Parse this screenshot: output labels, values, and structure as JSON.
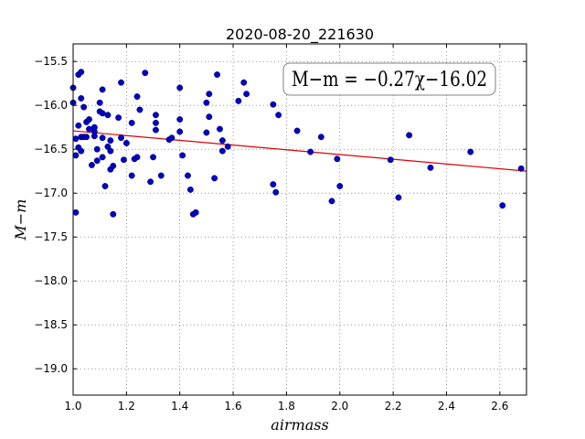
{
  "chart_data": {
    "type": "scatter",
    "title": "2020-08-20_221630",
    "xlabel": "airmass",
    "ylabel": "M−m",
    "xlim": [
      1.0,
      2.7
    ],
    "ylim": [
      -19.3,
      -15.3
    ],
    "y_inverted": true,
    "grid": true,
    "x_ticks": [
      1.0,
      1.2,
      1.4,
      1.6,
      1.8,
      2.0,
      2.2,
      2.4,
      2.6
    ],
    "x_tick_labels": [
      "1.0",
      "1.2",
      "1.4",
      "1.6",
      "1.8",
      "2.0",
      "2.2",
      "2.4",
      "2.6"
    ],
    "y_ticks": [
      -15.5,
      -16.0,
      -16.5,
      -17.0,
      -17.5,
      -18.0,
      -18.5,
      -19.0
    ],
    "y_tick_labels": [
      "−15.5",
      "−16.0",
      "−16.5",
      "−17.0",
      "−17.5",
      "−18.0",
      "−18.5",
      "−19.0"
    ],
    "annotation": "M−m = −0.27χ−16.02",
    "fit": {
      "slope": -0.27,
      "intercept": -16.02,
      "color": "#dd0000"
    },
    "point_color": "#0000cc",
    "points": [
      [
        1.0,
        -15.8
      ],
      [
        1.0,
        -15.97
      ],
      [
        1.01,
        -16.38
      ],
      [
        1.01,
        -16.57
      ],
      [
        1.01,
        -17.22
      ],
      [
        1.02,
        -15.65
      ],
      [
        1.02,
        -16.23
      ],
      [
        1.02,
        -16.48
      ],
      [
        1.03,
        -15.62
      ],
      [
        1.03,
        -15.92
      ],
      [
        1.03,
        -16.36
      ],
      [
        1.03,
        -16.52
      ],
      [
        1.04,
        -16.36
      ],
      [
        1.04,
        -16.02
      ],
      [
        1.05,
        -16.19
      ],
      [
        1.05,
        -16.36
      ],
      [
        1.06,
        -16.16
      ],
      [
        1.06,
        -16.27
      ],
      [
        1.07,
        -16.68
      ],
      [
        1.08,
        -16.3
      ],
      [
        1.08,
        -16.25
      ],
      [
        1.08,
        -16.35
      ],
      [
        1.09,
        -16.63
      ],
      [
        1.09,
        -16.5
      ],
      [
        1.1,
        -15.97
      ],
      [
        1.1,
        -16.07
      ],
      [
        1.11,
        -16.09
      ],
      [
        1.11,
        -16.37
      ],
      [
        1.11,
        -16.59
      ],
      [
        1.11,
        -15.82
      ],
      [
        1.12,
        -16.92
      ],
      [
        1.13,
        -16.47
      ],
      [
        1.13,
        -16.11
      ],
      [
        1.14,
        -16.4
      ],
      [
        1.14,
        -16.52
      ],
      [
        1.14,
        -16.73
      ],
      [
        1.15,
        -16.69
      ],
      [
        1.15,
        -17.24
      ],
      [
        1.17,
        -16.14
      ],
      [
        1.18,
        -16.37
      ],
      [
        1.18,
        -15.74
      ],
      [
        1.19,
        -16.62
      ],
      [
        1.2,
        -16.43
      ],
      [
        1.22,
        -16.2
      ],
      [
        1.22,
        -16.8
      ],
      [
        1.23,
        -16.61
      ],
      [
        1.24,
        -15.9
      ],
      [
        1.24,
        -16.59
      ],
      [
        1.25,
        -16.05
      ],
      [
        1.27,
        -15.63
      ],
      [
        1.29,
        -16.87
      ],
      [
        1.3,
        -16.59
      ],
      [
        1.31,
        -16.11
      ],
      [
        1.31,
        -16.2
      ],
      [
        1.31,
        -16.28
      ],
      [
        1.33,
        -16.8
      ],
      [
        1.36,
        -16.39
      ],
      [
        1.37,
        -16.37
      ],
      [
        1.4,
        -15.8
      ],
      [
        1.4,
        -16.16
      ],
      [
        1.4,
        -16.3
      ],
      [
        1.41,
        -16.57
      ],
      [
        1.43,
        -16.8
      ],
      [
        1.44,
        -16.96
      ],
      [
        1.45,
        -17.24
      ],
      [
        1.46,
        -17.22
      ],
      [
        1.5,
        -16.31
      ],
      [
        1.5,
        -15.97
      ],
      [
        1.51,
        -15.87
      ],
      [
        1.51,
        -16.13
      ],
      [
        1.53,
        -16.83
      ],
      [
        1.54,
        -15.65
      ],
      [
        1.55,
        -16.27
      ],
      [
        1.56,
        -16.4
      ],
      [
        1.56,
        -16.52
      ],
      [
        1.58,
        -16.47
      ],
      [
        1.62,
        -15.95
      ],
      [
        1.64,
        -15.74
      ],
      [
        1.65,
        -15.87
      ],
      [
        1.75,
        -15.99
      ],
      [
        1.75,
        -16.9
      ],
      [
        1.76,
        -16.99
      ],
      [
        1.77,
        -16.11
      ],
      [
        1.84,
        -16.29
      ],
      [
        1.89,
        -16.53
      ],
      [
        1.93,
        -16.36
      ],
      [
        1.97,
        -17.09
      ],
      [
        1.99,
        -16.61
      ],
      [
        2.0,
        -16.92
      ],
      [
        2.19,
        -16.62
      ],
      [
        2.22,
        -17.05
      ],
      [
        2.26,
        -16.34
      ],
      [
        2.34,
        -16.71
      ],
      [
        2.49,
        -16.53
      ],
      [
        2.61,
        -17.14
      ],
      [
        2.68,
        -16.72
      ]
    ]
  }
}
